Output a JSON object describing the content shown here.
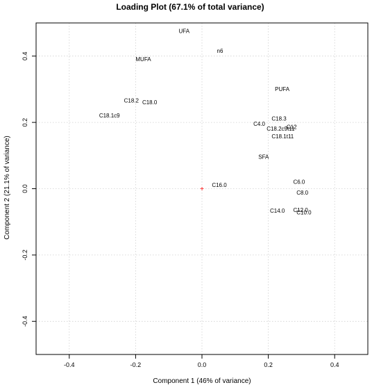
{
  "chart_data": {
    "type": "scatter",
    "title": "Loading Plot (67.1% of total variance)",
    "xlabel": "Component 1 (46% of variance)",
    "ylabel": "Component 2 (21.1% of variance)",
    "xlim": [
      -0.5,
      0.5
    ],
    "ylim": [
      -0.5,
      0.5
    ],
    "xticks": [
      -0.4,
      -0.2,
      0.0,
      0.2,
      0.4
    ],
    "xtick_labels": [
      "-0.4",
      "-0.2",
      "0.0",
      "0.2",
      "0.4"
    ],
    "yticks": [
      -0.4,
      -0.2,
      0.0,
      0.2,
      0.4
    ],
    "ytick_labels": [
      "-0.4",
      "-0.2",
      "0.0",
      "0.2",
      "0.4"
    ],
    "grid": true,
    "origin_marker": {
      "x": 0,
      "y": 0,
      "symbol": "+",
      "color": "#ff0000"
    },
    "points": [
      {
        "label": "UFA",
        "x": -0.07,
        "y": 0.47
      },
      {
        "label": "n6",
        "x": 0.045,
        "y": 0.41
      },
      {
        "label": "MUFA",
        "x": -0.2,
        "y": 0.385
      },
      {
        "label": "PUFA",
        "x": 0.22,
        "y": 0.295
      },
      {
        "label": "C18.2",
        "x": -0.235,
        "y": 0.26
      },
      {
        "label": "C18.0",
        "x": -0.18,
        "y": 0.255
      },
      {
        "label": "C18.1c9",
        "x": -0.31,
        "y": 0.215
      },
      {
        "label": "C18.3",
        "x": 0.21,
        "y": 0.205
      },
      {
        "label": "C4.0",
        "x": 0.155,
        "y": 0.19
      },
      {
        "label": "C12",
        "x": 0.255,
        "y": 0.18
      },
      {
        "label": "C18.2c9t11",
        "x": 0.195,
        "y": 0.175
      },
      {
        "label": "C18.1t11",
        "x": 0.21,
        "y": 0.152
      },
      {
        "label": "SFA",
        "x": 0.17,
        "y": 0.09
      },
      {
        "label": "C16.0",
        "x": 0.03,
        "y": 0.005
      },
      {
        "label": "C6.0",
        "x": 0.275,
        "y": 0.015
      },
      {
        "label": "C8.0",
        "x": 0.285,
        "y": -0.018
      },
      {
        "label": "C14.0",
        "x": 0.205,
        "y": -0.072
      },
      {
        "label": "C12.0",
        "x": 0.275,
        "y": -0.07
      },
      {
        "label": "C10.0",
        "x": 0.285,
        "y": -0.078
      }
    ]
  }
}
